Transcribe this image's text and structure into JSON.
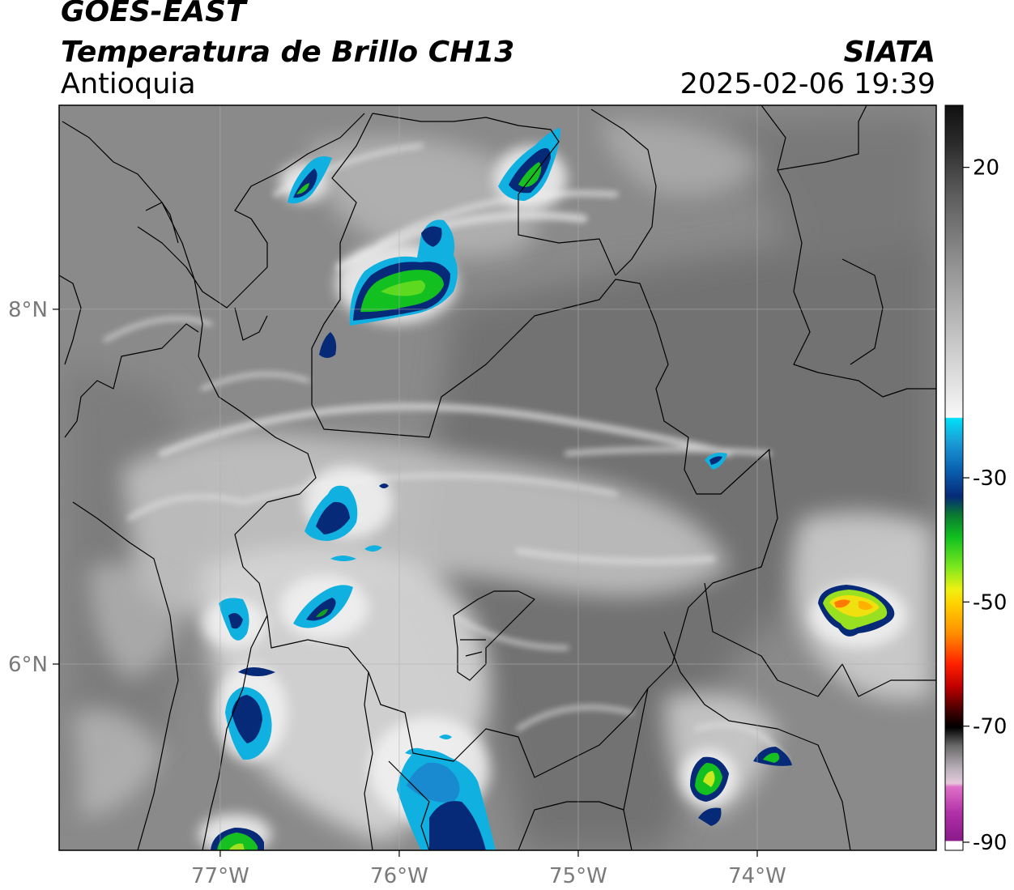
{
  "header": {
    "satellite": "GOES-EAST",
    "product": "Temperatura de Brillo CH13",
    "region": "Antioquia",
    "organization": "SIATA",
    "datetime": "2025-02-06 19:39"
  },
  "axes": {
    "longitude_ticks": [
      {
        "value": -77,
        "label": "77°W"
      },
      {
        "value": -76,
        "label": "76°W"
      },
      {
        "value": -75,
        "label": "75°W"
      },
      {
        "value": -74,
        "label": "74°W"
      }
    ],
    "latitude_ticks": [
      {
        "value": 8,
        "label": "8°N"
      },
      {
        "value": 6,
        "label": "6°N"
      }
    ],
    "lon_range": [
      -77.9,
      -73.0
    ],
    "lat_range": [
      4.95,
      9.15
    ],
    "grid": true
  },
  "colorbar": {
    "range": [
      -90,
      30
    ],
    "ticks": [
      {
        "value": 20,
        "label": "20"
      },
      {
        "value": -30,
        "label": "-30"
      },
      {
        "value": -50,
        "label": "-50"
      },
      {
        "value": -70,
        "label": "-70"
      },
      {
        "value": -90,
        "label": "-90"
      }
    ],
    "colors": {
      "warm_dark": "#1a1a1a",
      "warm_mid": "#8c8c8c",
      "near_white": "#f4f4f4",
      "cyan": "#00d8f0",
      "blue": "#0a5fb0",
      "navy": "#062a78",
      "green": "#14c81e",
      "yellow": "#f2f20a",
      "orange": "#ff9a00",
      "red": "#e60000",
      "black": "#000000",
      "pink": "#e070c8",
      "magenta": "#a0209a"
    }
  }
}
